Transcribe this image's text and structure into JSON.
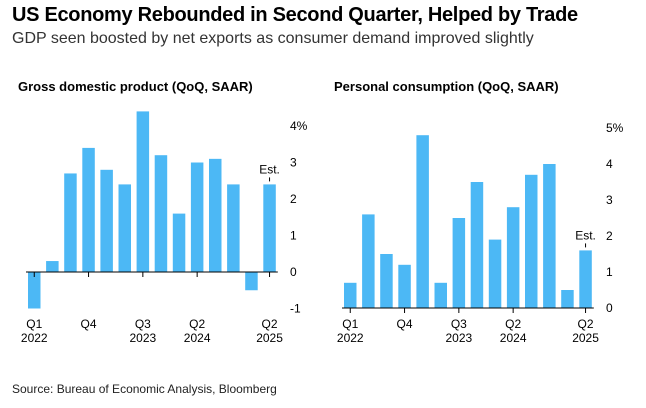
{
  "title": "US Economy Rebounded in Second Quarter, Helped by Trade",
  "subtitle": "GDP seen boosted by net exports as consumer demand improved slightly",
  "source": "Source: Bureau of Economic Analysis, Bloomberg",
  "colors": {
    "bar": "#4cb8f5",
    "axis": "#000000"
  },
  "chart_data": [
    {
      "type": "bar",
      "title": "Gross domestic product (QoQ, SAAR)",
      "categories": [
        "Q1 2022",
        "Q2 2022",
        "Q3 2022",
        "Q4 2022",
        "Q1 2023",
        "Q2 2023",
        "Q3 2023",
        "Q4 2023",
        "Q1 2024",
        "Q2 2024",
        "Q3 2024",
        "Q4 2024",
        "Q1 2025",
        "Q2 2025"
      ],
      "values": [
        -1.0,
        0.3,
        2.7,
        3.4,
        2.8,
        2.4,
        4.4,
        3.2,
        1.6,
        3.0,
        3.1,
        2.4,
        -0.5,
        2.4
      ],
      "ylim": [
        -1,
        4
      ],
      "yticks": [
        -1,
        0,
        1,
        2,
        3,
        4
      ],
      "ytick_labels": [
        "-1",
        "0",
        "1",
        "2",
        "3",
        "4%"
      ],
      "xticks": [
        {
          "index": 0,
          "line1": "Q1",
          "line2": "2022"
        },
        {
          "index": 3,
          "line1": "Q4",
          "line2": ""
        },
        {
          "index": 6,
          "line1": "Q3",
          "line2": "2023"
        },
        {
          "index": 9,
          "line1": "Q2",
          "line2": "2024"
        },
        {
          "index": 13,
          "line1": "Q2",
          "line2": "2025"
        }
      ],
      "annotation": {
        "index": 13,
        "text": "Est."
      }
    },
    {
      "type": "bar",
      "title": "Personal consumption (QoQ, SAAR)",
      "categories": [
        "Q1 2022",
        "Q2 2022",
        "Q3 2022",
        "Q4 2022",
        "Q1 2023",
        "Q2 2023",
        "Q3 2023",
        "Q4 2023",
        "Q1 2024",
        "Q2 2024",
        "Q3 2024",
        "Q4 2024",
        "Q1 2025",
        "Q2 2025"
      ],
      "values": [
        0.7,
        2.6,
        1.5,
        1.2,
        4.8,
        0.7,
        2.5,
        3.5,
        1.9,
        2.8,
        3.7,
        4.0,
        0.5,
        1.6
      ],
      "ylim": [
        0,
        5
      ],
      "yticks": [
        0,
        1,
        2,
        3,
        4,
        5
      ],
      "ytick_labels": [
        "0",
        "1",
        "2",
        "3",
        "4",
        "5%"
      ],
      "xticks": [
        {
          "index": 0,
          "line1": "Q1",
          "line2": "2022"
        },
        {
          "index": 3,
          "line1": "Q4",
          "line2": ""
        },
        {
          "index": 6,
          "line1": "Q3",
          "line2": "2023"
        },
        {
          "index": 9,
          "line1": "Q2",
          "line2": "2024"
        },
        {
          "index": 13,
          "line1": "Q2",
          "line2": "2025"
        }
      ],
      "annotation": {
        "index": 13,
        "text": "Est."
      }
    }
  ]
}
